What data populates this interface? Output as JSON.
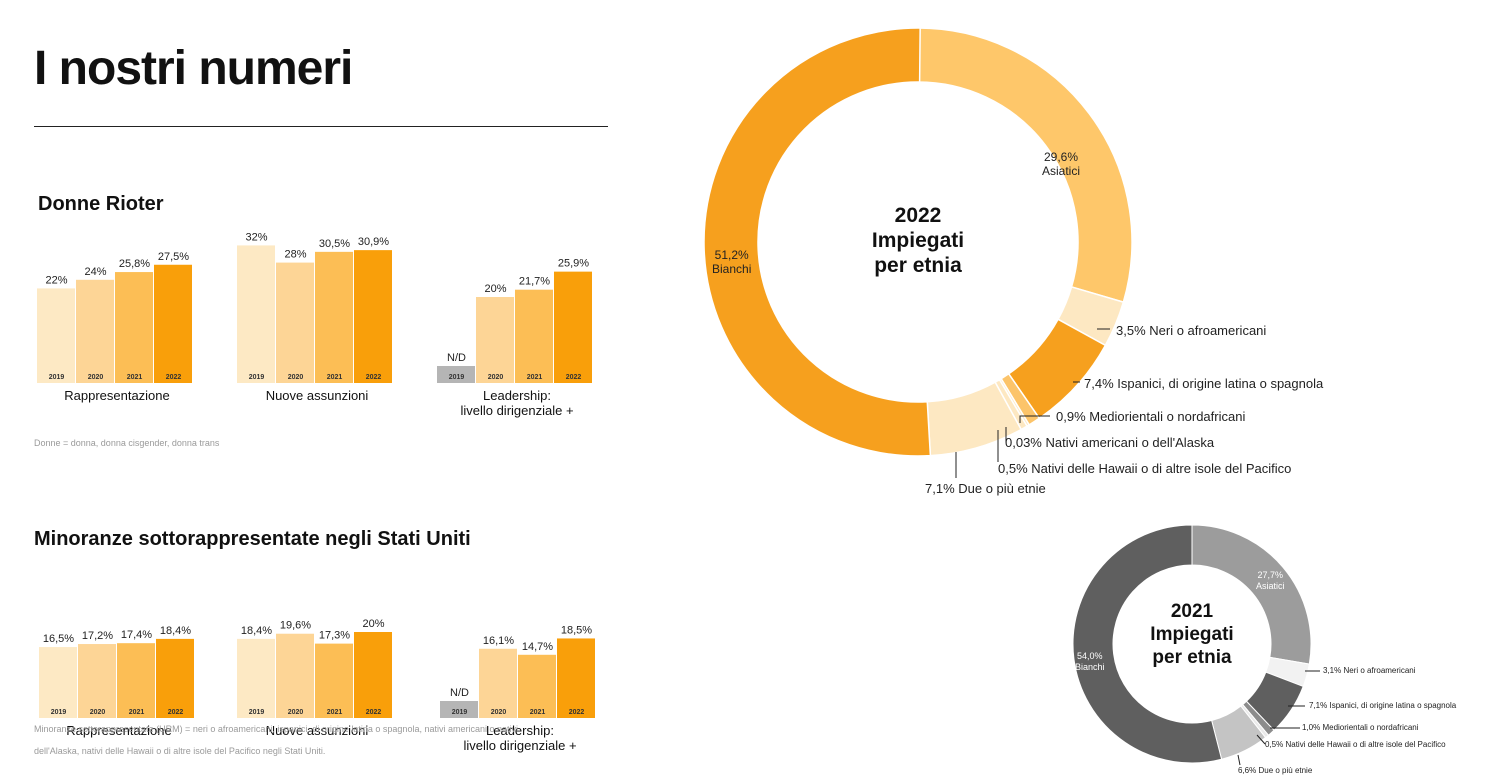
{
  "page": {
    "title": "I nostri numeri"
  },
  "colors": {
    "bars": [
      "#fde9c4",
      "#fdd596",
      "#fcbe55",
      "#f99f0a"
    ],
    "na_bar": "#b5b5b5",
    "donut2022": {
      "bianchi": "#f6a01e",
      "asiatici": "#fec76a",
      "neri": "#fde8c2",
      "ispanici": "#f6a01e",
      "medio": "#fcc46a",
      "nativi_am": "#fde8c2",
      "hawaii": "#fde8c2",
      "due_piu": "#fde8c2"
    },
    "donut2021": {
      "bianchi": "#5f5f5f",
      "asiatici": "#9c9c9c",
      "neri": "#f2f2f2",
      "ispanici": "#5f5f5f",
      "medio": "#8c8c8c",
      "hawaii": "#eaeaea",
      "due_piu": "#c4c4c4"
    }
  },
  "sections": [
    {
      "title": "Donne Rioter",
      "footnote": [
        "Donne = donna, donna cisgender, donna trans"
      ],
      "groups": [
        {
          "label": [
            "Rappresentazione"
          ],
          "bars": [
            {
              "year": "2019",
              "value": 22,
              "label": "22%"
            },
            {
              "year": "2020",
              "value": 24,
              "label": "24%"
            },
            {
              "year": "2021",
              "value": 25.8,
              "label": "25,8%"
            },
            {
              "year": "2022",
              "value": 27.5,
              "label": "27,5%"
            }
          ]
        },
        {
          "label": [
            "Nuove assunzioni"
          ],
          "bars": [
            {
              "year": "2019",
              "value": 32,
              "label": "32%"
            },
            {
              "year": "2020",
              "value": 28,
              "label": "28%"
            },
            {
              "year": "2021",
              "value": 30.5,
              "label": "30,5%"
            },
            {
              "year": "2022",
              "value": 30.9,
              "label": "30,9%"
            }
          ]
        },
        {
          "label": [
            "Leadership:",
            "livello dirigenziale +"
          ],
          "bars": [
            {
              "year": "2019",
              "value": null,
              "label": "N/D"
            },
            {
              "year": "2020",
              "value": 20,
              "label": "20%"
            },
            {
              "year": "2021",
              "value": 21.7,
              "label": "21,7%"
            },
            {
              "year": "2022",
              "value": 25.9,
              "label": "25,9%"
            }
          ]
        }
      ]
    },
    {
      "title": "Minoranze sottorappresentate negli Stati Uniti",
      "footnote": [
        "Minoranze sottorappresentate (URM) = neri o afroamericani, ispanici, di origine latina o spagnola, nativi americani o nativi",
        "dell'Alaska, nativi delle Hawaii o di altre isole del Pacifico negli Stati Uniti."
      ],
      "groups": [
        {
          "label": [
            "Rappresentazione"
          ],
          "bars": [
            {
              "year": "2019",
              "value": 16.5,
              "label": "16,5%"
            },
            {
              "year": "2020",
              "value": 17.2,
              "label": "17,2%"
            },
            {
              "year": "2021",
              "value": 17.4,
              "label": "17,4%"
            },
            {
              "year": "2022",
              "value": 18.4,
              "label": "18,4%"
            }
          ]
        },
        {
          "label": [
            "Nuove assunzioni"
          ],
          "bars": [
            {
              "year": "2019",
              "value": 18.4,
              "label": "18,4%"
            },
            {
              "year": "2020",
              "value": 19.6,
              "label": "19,6%"
            },
            {
              "year": "2021",
              "value": 17.3,
              "label": "17,3%"
            },
            {
              "year": "2022",
              "value": 20,
              "label": "20%"
            }
          ]
        },
        {
          "label": [
            "Leadership:",
            "livello dirigenziale +"
          ],
          "bars": [
            {
              "year": "2019",
              "value": null,
              "label": "N/D"
            },
            {
              "year": "2020",
              "value": 16.1,
              "label": "16,1%"
            },
            {
              "year": "2021",
              "value": 14.7,
              "label": "14,7%"
            },
            {
              "year": "2022",
              "value": 18.5,
              "label": "18,5%"
            }
          ]
        }
      ]
    }
  ],
  "chart_data": [
    {
      "type": "bar",
      "title": "Donne Rioter",
      "subtitle": "Rappresentazione",
      "categories": [
        "2019",
        "2020",
        "2021",
        "2022"
      ],
      "values": [
        22,
        24,
        25.8,
        27.5
      ]
    },
    {
      "type": "bar",
      "title": "Donne Rioter",
      "subtitle": "Nuove assunzioni",
      "categories": [
        "2019",
        "2020",
        "2021",
        "2022"
      ],
      "values": [
        32,
        28,
        30.5,
        30.9
      ]
    },
    {
      "type": "bar",
      "title": "Donne Rioter",
      "subtitle": "Leadership: livello dirigenziale +",
      "categories": [
        "2019",
        "2020",
        "2021",
        "2022"
      ],
      "values": [
        null,
        20,
        21.7,
        25.9
      ]
    },
    {
      "type": "bar",
      "title": "Minoranze sottorappresentate negli Stati Uniti",
      "subtitle": "Rappresentazione",
      "categories": [
        "2019",
        "2020",
        "2021",
        "2022"
      ],
      "values": [
        16.5,
        17.2,
        17.4,
        18.4
      ]
    },
    {
      "type": "bar",
      "title": "Minoranze sottorappresentate negli Stati Uniti",
      "subtitle": "Nuove assunzioni",
      "categories": [
        "2019",
        "2020",
        "2021",
        "2022"
      ],
      "values": [
        18.4,
        19.6,
        17.3,
        20
      ]
    },
    {
      "type": "bar",
      "title": "Minoranze sottorappresentate negli Stati Uniti",
      "subtitle": "Leadership: livello dirigenziale +",
      "categories": [
        "2019",
        "2020",
        "2021",
        "2022"
      ],
      "values": [
        null,
        16.1,
        14.7,
        18.5
      ]
    },
    {
      "type": "pie",
      "title": [
        "2022",
        "Impiegati",
        "per etnia"
      ],
      "slices": [
        {
          "key": "asiatici",
          "value": 29.6,
          "label": "29,6%",
          "name": "Asiatici"
        },
        {
          "key": "neri",
          "value": 3.5,
          "label": "3,5%",
          "name": "Neri o afroamericani"
        },
        {
          "key": "ispanici",
          "value": 7.4,
          "label": "7,4%",
          "name": "Ispanici, di origine latina o spagnola"
        },
        {
          "key": "medio",
          "value": 0.9,
          "label": "0,9%",
          "name": "Mediorientali o nordafricani"
        },
        {
          "key": "nativi_am",
          "value": 0.03,
          "label": "0,03%",
          "name": "Nativi americani o dell'Alaska"
        },
        {
          "key": "hawaii",
          "value": 0.5,
          "label": "0,5%",
          "name": "Nativi delle Hawaii o di altre isole del Pacifico"
        },
        {
          "key": "due_piu",
          "value": 7.1,
          "label": "7,1%",
          "name": "Due o più etnie"
        },
        {
          "key": "bianchi",
          "value": 51.2,
          "label": "51,2%",
          "name": "Bianchi"
        }
      ]
    },
    {
      "type": "pie",
      "title": [
        "2021",
        "Impiegati",
        "per etnia"
      ],
      "slices": [
        {
          "key": "asiatici",
          "value": 27.7,
          "label": "27,7%",
          "name": "Asiatici"
        },
        {
          "key": "neri",
          "value": 3.1,
          "label": "3,1%",
          "name": "Neri o afroamericani"
        },
        {
          "key": "ispanici",
          "value": 7.1,
          "label": "7,1%",
          "name": "Ispanici, di origine latina o spagnola"
        },
        {
          "key": "medio",
          "value": 1.0,
          "label": "1,0%",
          "name": "Mediorientali o nordafricani"
        },
        {
          "key": "hawaii",
          "value": 0.5,
          "label": "0,5%",
          "name": "Nativi delle Hawaii o di altre isole del Pacifico"
        },
        {
          "key": "due_piu",
          "value": 6.6,
          "label": "6,6%",
          "name": "Due o più etnie"
        },
        {
          "key": "bianchi",
          "value": 54.0,
          "label": "54,0%",
          "name": "Bianchi"
        }
      ]
    }
  ]
}
